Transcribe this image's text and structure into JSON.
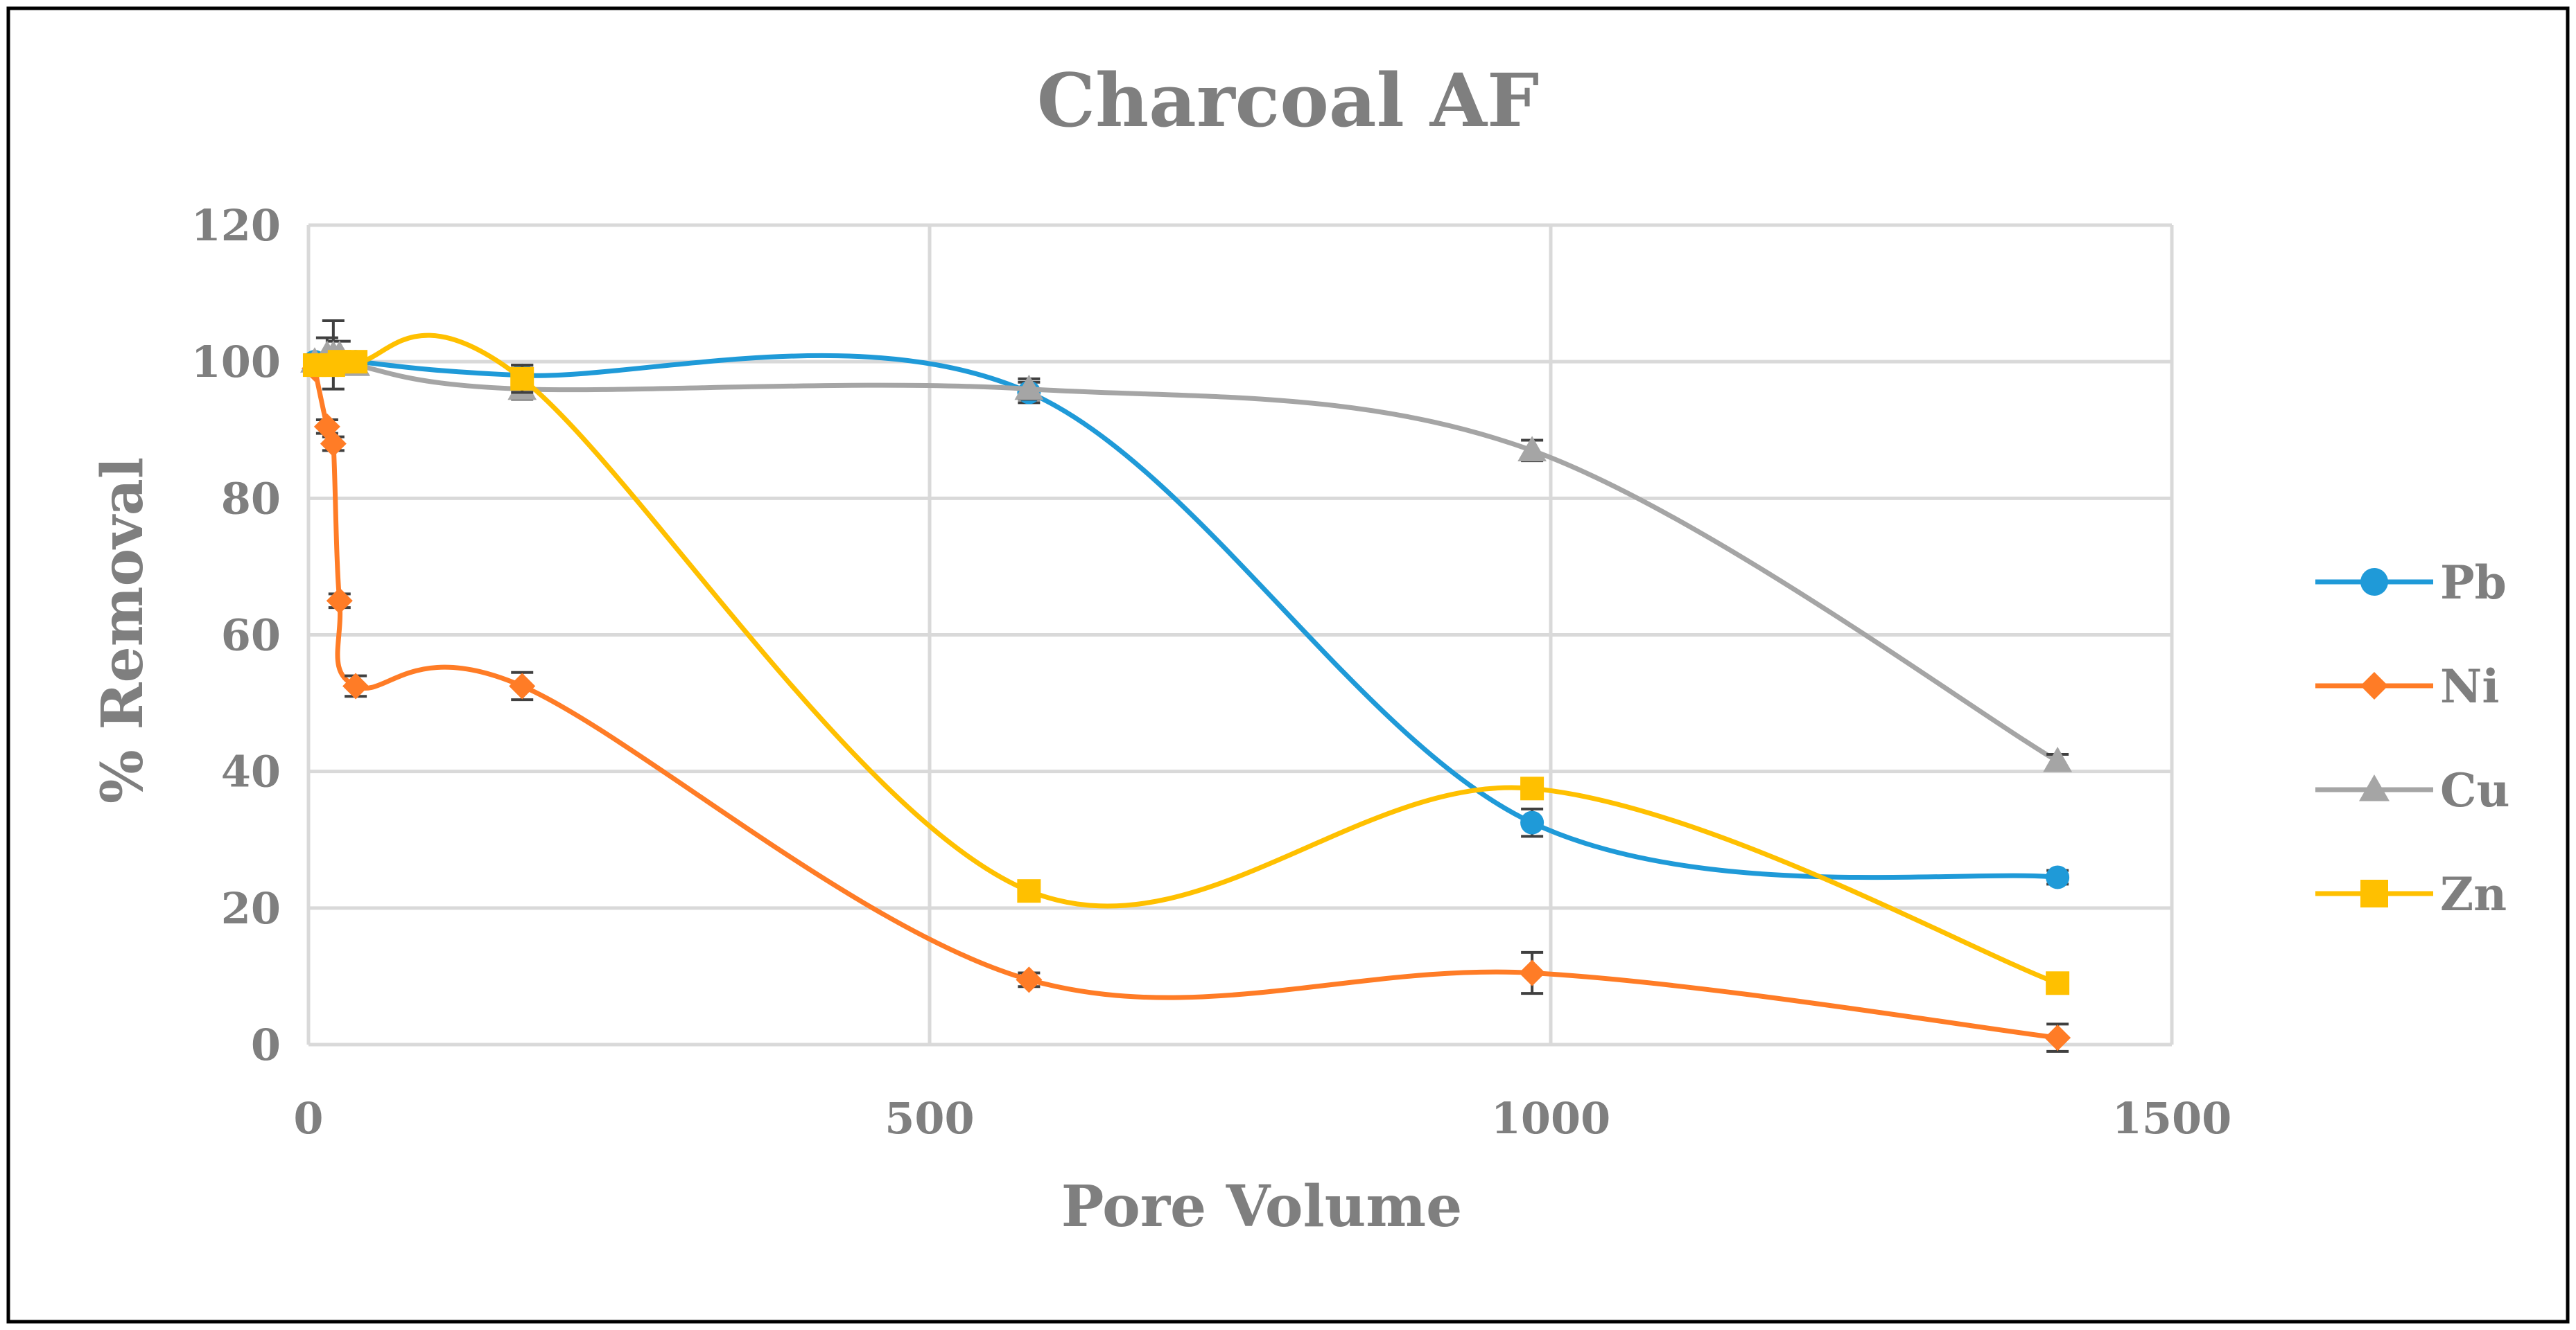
{
  "chart_data": {
    "type": "scatter",
    "title": "Charcoal AF",
    "xlabel": "Pore Volume",
    "ylabel": "% Removal",
    "xlim": [
      0,
      1500
    ],
    "ylim": [
      0,
      120
    ],
    "xticks": [
      0,
      500,
      1000,
      1500
    ],
    "yticks": [
      0,
      20,
      40,
      60,
      80,
      100,
      120
    ],
    "grid": true,
    "legend": "right",
    "smooth_lines": true,
    "series": [
      {
        "name": "Pb",
        "color": "#1f9ad8",
        "marker": "circle",
        "x": [
          5,
          15,
          20,
          25,
          38,
          172,
          580,
          985,
          1408
        ],
        "y": [
          100,
          100,
          100,
          100,
          100,
          98,
          95.5,
          32.5,
          24.5
        ],
        "err": [
          1,
          1,
          1,
          1,
          1,
          1.5,
          1.5,
          2,
          1
        ]
      },
      {
        "name": "Ni",
        "color": "#ff7c26",
        "marker": "diamond",
        "x": [
          5,
          15,
          20,
          25,
          38,
          172,
          580,
          985,
          1408
        ],
        "y": [
          99,
          90.5,
          88,
          65,
          52.5,
          52.5,
          9.5,
          10.5,
          1
        ],
        "err": [
          1,
          1,
          1,
          1,
          1.5,
          2,
          1,
          3,
          2
        ]
      },
      {
        "name": "Cu",
        "color": "#a5a5a5",
        "marker": "triangle",
        "x": [
          5,
          15,
          20,
          25,
          38,
          172,
          580,
          985,
          1408
        ],
        "y": [
          100,
          101,
          101,
          101,
          99.5,
          96,
          96,
          87,
          41.5
        ],
        "err": [
          1,
          2.5,
          5,
          2,
          1,
          1.5,
          1.5,
          1.5,
          1
        ]
      },
      {
        "name": "Zn",
        "color": "#ffc000",
        "marker": "square",
        "x": [
          5,
          15,
          20,
          25,
          38,
          172,
          580,
          985,
          1408
        ],
        "y": [
          99.5,
          99.5,
          99.5,
          100,
          100,
          97.5,
          22.5,
          37.5,
          9
        ],
        "err": [
          1,
          1,
          1,
          1,
          1,
          2,
          1,
          1,
          1
        ]
      }
    ]
  }
}
